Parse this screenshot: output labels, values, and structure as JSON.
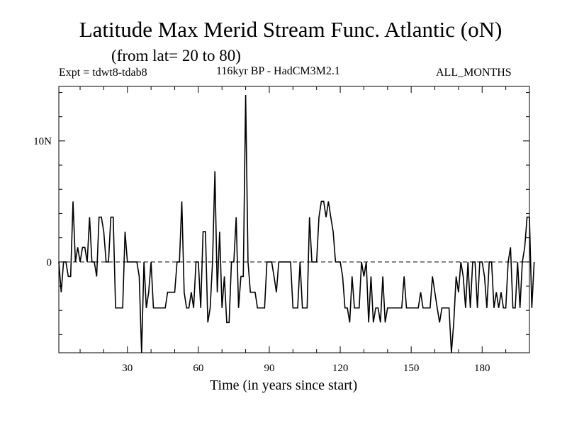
{
  "header": {
    "title": "Latitude Max Merid Stream Func. Atlantic (oN)",
    "subtitle": "(from lat= 20 to 80)",
    "experiment": "Expt = tdwt8-tdab8",
    "model": "116kyr BP - HadCM3M2.1",
    "period": "ALL_MONTHS"
  },
  "chart_data": {
    "type": "line",
    "title": "Latitude Max Merid Stream Func. Atlantic (oN)",
    "subtitle": "(from lat= 20 to 80)",
    "xlabel": "Time (in years since start)",
    "ylabel": "",
    "xlim": [
      1,
      200
    ],
    "ylim": [
      -7.5,
      14.5
    ],
    "x_ticks": [
      30,
      60,
      90,
      120,
      150,
      180
    ],
    "x_tick_labels": [
      "30",
      "60",
      "90",
      "120",
      "150",
      "180"
    ],
    "y_ticks": [
      0,
      10
    ],
    "y_tick_labels": [
      "0",
      "10N"
    ],
    "reference_line": 0,
    "series": [
      {
        "name": "Max Merid Stream Func",
        "x_start": 1,
        "x_step": 1,
        "values": [
          0,
          -2.5,
          0,
          0,
          -1.2,
          -1.2,
          5,
          0,
          1.2,
          0,
          1.2,
          1.2,
          0,
          3.7,
          0,
          0,
          -1.2,
          3.7,
          3.7,
          2.5,
          0,
          0,
          3.7,
          3.7,
          -3.8,
          -3.8,
          -3.8,
          -3.8,
          2.5,
          0,
          0,
          0,
          0,
          0,
          -1.2,
          -7.5,
          0,
          -3.8,
          -2.5,
          0,
          -3.8,
          -3.8,
          -3.8,
          -3.8,
          -3.8,
          -3.8,
          -2.5,
          -2.5,
          -2.5,
          -2.5,
          0,
          0,
          5,
          -2.5,
          -3.8,
          -3.8,
          -2.5,
          -3.8,
          0,
          0,
          -3.8,
          2.5,
          2.5,
          -5,
          -3.8,
          0,
          7.5,
          -2.5,
          2.5,
          -3.8,
          -1.2,
          -5,
          -5,
          0,
          0,
          3.7,
          -3.8,
          -1.2,
          -1.2,
          13.8,
          0,
          -2.5,
          -2.5,
          -2.5,
          -3.8,
          -3.8,
          -3.8,
          -3.8,
          0,
          0,
          0,
          -1.2,
          -2.5,
          0,
          0,
          0,
          0,
          0,
          0,
          -3.8,
          -3.8,
          -3.8,
          0,
          -3.8,
          -3.8,
          -3.8,
          3.7,
          0,
          0,
          0,
          3.7,
          5,
          5,
          3.7,
          5,
          3.7,
          2.5,
          0,
          0,
          0,
          -1.2,
          -3.8,
          -3.8,
          -5,
          -1.2,
          -3.8,
          -3.8,
          -3.8,
          0,
          -1.2,
          0,
          -5,
          -1.2,
          -5,
          -3.8,
          -3.8,
          -5,
          -1.2,
          -5,
          -3.8,
          -3.8,
          -3.8,
          -3.8,
          -3.8,
          -3.8,
          -3.8,
          -1.2,
          -3.8,
          -3.8,
          -3.8,
          -3.8,
          -3.8,
          -3.8,
          -2.5,
          -3.8,
          -3.8,
          -3.8,
          -3.8,
          -1.2,
          -2.5,
          -3.8,
          -5,
          -3.8,
          -3.8,
          -3.8,
          -3.8,
          -7.5,
          -5,
          -1.2,
          -2.5,
          0,
          -1.2,
          -3.8,
          0,
          -3.8,
          0,
          0,
          -3.8,
          0,
          0,
          -1.2,
          -3.8,
          0,
          0,
          -3.8,
          -2.5,
          -3.8,
          -2.5,
          -3.8,
          -3.8,
          0,
          1.2,
          -3.8,
          -3.8,
          0,
          -3.8,
          0,
          1.2,
          3.7,
          3.7,
          -3.8,
          0
        ]
      }
    ]
  },
  "colors": {
    "background": "#ffffff",
    "line": "#000000"
  }
}
